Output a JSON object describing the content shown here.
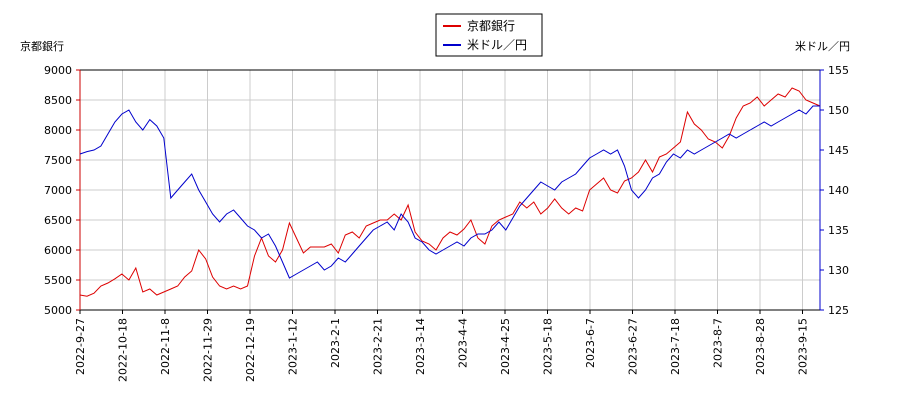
{
  "chart_data": {
    "type": "line",
    "title": "",
    "legend_position": "top-center",
    "grid": true,
    "y_left": {
      "label": "京都銀行",
      "range": [
        5000,
        9000
      ],
      "ticks": [
        "9000",
        "8500",
        "8000",
        "7500",
        "7000",
        "6500",
        "6000",
        "5500",
        "5000"
      ],
      "tick_values": [
        9000,
        8500,
        8000,
        7500,
        7000,
        6500,
        6000,
        5500,
        5000
      ],
      "color": "#cc0000"
    },
    "y_right": {
      "label": "米ドル／円",
      "range": [
        125,
        155
      ],
      "ticks": [
        "155",
        "150",
        "145",
        "140",
        "135",
        "130",
        "125"
      ],
      "tick_values": [
        155,
        150,
        145,
        140,
        135,
        130,
        125
      ],
      "color": "#0000cc"
    },
    "x_ticks": [
      "2022-9-27",
      "2022-10-18",
      "2022-11-8",
      "2022-11-29",
      "2022-12-19",
      "2023-1-12",
      "2023-2-1",
      "2023-2-21",
      "2023-3-14",
      "2023-4-4",
      "2023-4-25",
      "2023-5-18",
      "2023-6-7",
      "2023-6-27",
      "2023-7-18",
      "2023-8-7",
      "2023-8-28",
      "2023-9-15"
    ],
    "series": [
      {
        "name": "京都銀行",
        "color": "#dd0000",
        "axis": "left",
        "values": [
          5250,
          5230,
          5280,
          5400,
          5450,
          5520,
          5600,
          5500,
          5700,
          5300,
          5350,
          5250,
          5300,
          5350,
          5400,
          5550,
          5650,
          6000,
          5850,
          5550,
          5400,
          5350,
          5400,
          5350,
          5400,
          5900,
          6200,
          5900,
          5800,
          6000,
          6450,
          6200,
          5950,
          6050,
          6050,
          6050,
          6100,
          5950,
          6250,
          6300,
          6200,
          6400,
          6450,
          6500,
          6500,
          6600,
          6500,
          6750,
          6300,
          6150,
          6100,
          6000,
          6200,
          6300,
          6250,
          6350,
          6500,
          6200,
          6100,
          6400,
          6500,
          6550,
          6600,
          6800,
          6700,
          6800,
          6600,
          6700,
          6850,
          6700,
          6600,
          6700,
          6650,
          7000,
          7100,
          7200,
          7000,
          6950,
          7150,
          7200,
          7300,
          7500,
          7300,
          7550,
          7600,
          7700,
          7800,
          8300,
          8100,
          8000,
          7850,
          7800,
          7700,
          7900,
          8200,
          8400,
          8450,
          8550,
          8400,
          8500,
          8600,
          8550,
          8700,
          8650,
          8500,
          8450,
          8400
        ]
      },
      {
        "name": "米ドル／円",
        "color": "#0000cc",
        "axis": "right",
        "values": [
          144.5,
          144.8,
          145.0,
          145.5,
          147.0,
          148.5,
          149.5,
          150.0,
          148.5,
          147.5,
          148.8,
          148.0,
          146.5,
          139.0,
          140.0,
          141.0,
          142.0,
          140.0,
          138.5,
          137.0,
          136.0,
          137.0,
          137.5,
          136.5,
          135.5,
          135.0,
          134.0,
          134.5,
          133.0,
          131.0,
          129.0,
          129.5,
          130.0,
          130.5,
          131.0,
          130.0,
          130.5,
          131.5,
          131.0,
          132.0,
          133.0,
          134.0,
          135.0,
          135.5,
          136.0,
          135.0,
          137.0,
          136.0,
          134.0,
          133.5,
          132.5,
          132.0,
          132.5,
          133.0,
          133.5,
          133.0,
          134.0,
          134.5,
          134.5,
          135.0,
          136.0,
          135.0,
          136.5,
          138.0,
          139.0,
          140.0,
          141.0,
          140.5,
          140.0,
          141.0,
          141.5,
          142.0,
          143.0,
          144.0,
          144.5,
          145.0,
          144.5,
          145.0,
          143.0,
          140.0,
          139.0,
          140.0,
          141.5,
          142.0,
          143.5,
          144.5,
          144.0,
          145.0,
          144.5,
          145.0,
          145.5,
          146.0,
          146.5,
          147.0,
          146.5,
          147.0,
          147.5,
          148.0,
          148.5,
          148.0,
          148.5,
          149.0,
          149.5,
          150.0,
          149.5,
          150.5,
          150.5
        ]
      }
    ]
  }
}
